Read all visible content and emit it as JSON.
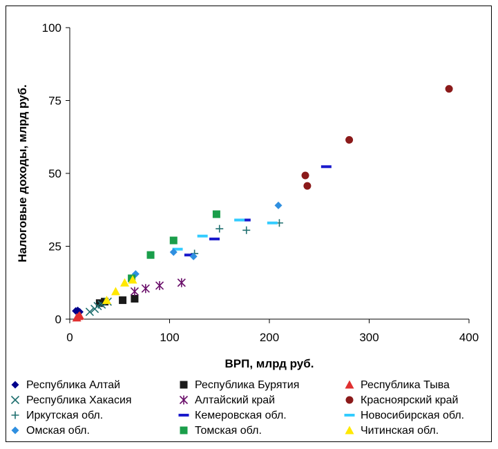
{
  "chart_data": {
    "type": "scatter",
    "xlabel": "ВРП, млрд руб.",
    "ylabel": "Налоговые доходы, млрд руб.",
    "xlim": [
      0,
      400
    ],
    "ylim": [
      0,
      100
    ],
    "x_ticks": [
      "0",
      "100",
      "200",
      "300",
      "400"
    ],
    "y_ticks": [
      "0",
      "25",
      "50",
      "75",
      "100"
    ],
    "grid": false,
    "legend_position": "bottom",
    "series": [
      {
        "name": "Республика Алтай",
        "marker": "diamond",
        "color": "#00008B",
        "points": [
          [
            6,
            2.8
          ],
          [
            8,
            3
          ],
          [
            10,
            2.5
          ]
        ]
      },
      {
        "name": "Республика Бурятия",
        "marker": "square",
        "color": "#1a1a1a",
        "points": [
          [
            30,
            5.5
          ],
          [
            35,
            6
          ],
          [
            53,
            6.5
          ],
          [
            65,
            7
          ]
        ]
      },
      {
        "name": "Республика Тыва",
        "marker": "triangle",
        "color": "#E03030",
        "points": [
          [
            7,
            0.5
          ],
          [
            9,
            1
          ],
          [
            10,
            1.2
          ]
        ]
      },
      {
        "name": "Республика Хакасия",
        "marker": "x",
        "color": "#1f6f6f",
        "points": [
          [
            20,
            2.5
          ],
          [
            25,
            3.5
          ],
          [
            28,
            4.5
          ],
          [
            32,
            5
          ],
          [
            38,
            6
          ]
        ]
      },
      {
        "name": "Алтайский край",
        "marker": "asterisk",
        "color": "#6a0f6a",
        "points": [
          [
            65,
            9.5
          ],
          [
            76,
            10.5
          ],
          [
            90,
            11.5
          ],
          [
            112,
            12.5
          ]
        ]
      },
      {
        "name": "Красноярский край",
        "marker": "circle",
        "color": "#8B1A1A",
        "points": [
          [
            236,
            49.3
          ],
          [
            238,
            45.7
          ],
          [
            280,
            61.5
          ],
          [
            380,
            79
          ]
        ]
      },
      {
        "name": "Иркутская обл.",
        "marker": "plus",
        "color": "#1f6f6f",
        "points": [
          [
            125,
            22.5
          ],
          [
            150,
            31
          ],
          [
            177,
            30.5
          ],
          [
            210,
            33
          ]
        ]
      },
      {
        "name": "Кемеровская обл.",
        "marker": "dash",
        "color": "#1a1acc",
        "points": [
          [
            120,
            22
          ],
          [
            145,
            27.5
          ],
          [
            176,
            34
          ],
          [
            257,
            52.3
          ]
        ]
      },
      {
        "name": "Новосибирская обл.",
        "marker": "dash",
        "color": "#33ccff",
        "points": [
          [
            108,
            24
          ],
          [
            133,
            28.5
          ],
          [
            170,
            34
          ],
          [
            203,
            33
          ]
        ]
      },
      {
        "name": "Омская обл.",
        "marker": "diamond",
        "color": "#2f8fe0",
        "points": [
          [
            66,
            15.5
          ],
          [
            104,
            23
          ],
          [
            124,
            21.5
          ],
          [
            209,
            39
          ]
        ]
      },
      {
        "name": "Томская обл.",
        "marker": "square",
        "color": "#1a9e4a",
        "points": [
          [
            62,
            14
          ],
          [
            81,
            22
          ],
          [
            104,
            27
          ],
          [
            147,
            36
          ]
        ]
      },
      {
        "name": "Читинская обл.",
        "marker": "triangle",
        "color": "#FFE800",
        "points": [
          [
            37,
            6.5
          ],
          [
            46,
            9.5
          ],
          [
            55,
            12.5
          ],
          [
            63,
            13.5
          ]
        ]
      }
    ]
  }
}
